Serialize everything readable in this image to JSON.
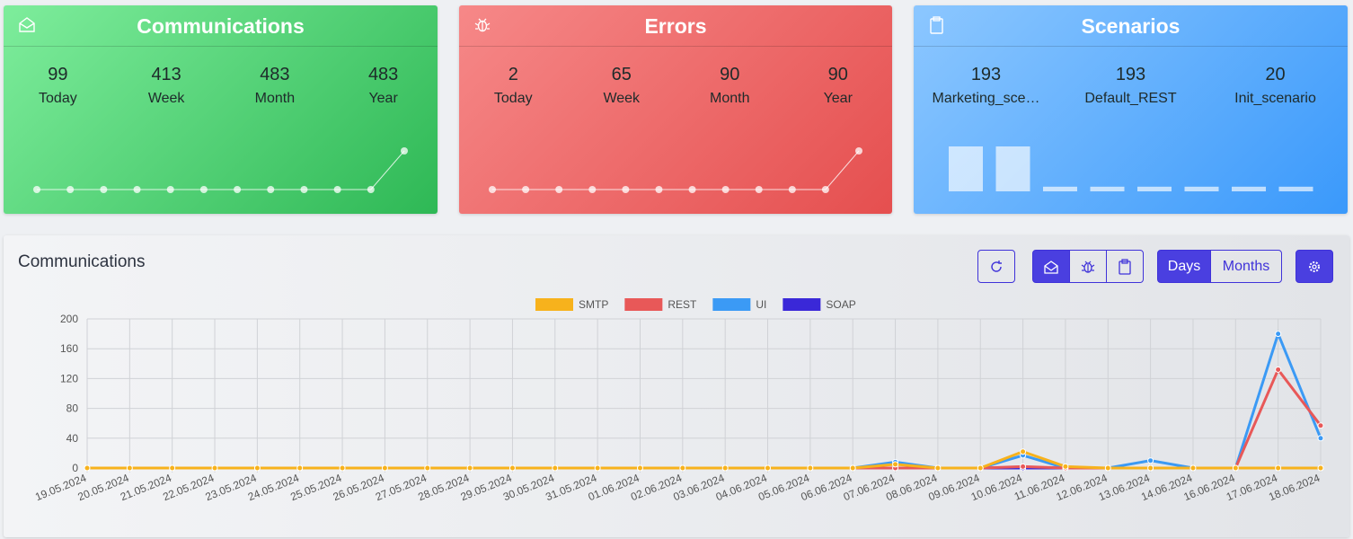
{
  "cards": [
    {
      "title": "Communications",
      "stats": [
        {
          "value": 99,
          "label": "Today"
        },
        {
          "value": 413,
          "label": "Week"
        },
        {
          "value": 483,
          "label": "Month"
        },
        {
          "value": 483,
          "label": "Year"
        }
      ],
      "spark": [
        0,
        0,
        0,
        0,
        0,
        0,
        0,
        0,
        0,
        0,
        0,
        99
      ]
    },
    {
      "title": "Errors",
      "stats": [
        {
          "value": 2,
          "label": "Today"
        },
        {
          "value": 65,
          "label": "Week"
        },
        {
          "value": 90,
          "label": "Month"
        },
        {
          "value": 90,
          "label": "Year"
        }
      ],
      "spark": [
        0,
        0,
        0,
        0,
        0,
        0,
        0,
        0,
        0,
        0,
        0,
        2
      ]
    },
    {
      "title": "Scenarios",
      "stats": [
        {
          "value": 193,
          "label": "Marketing_sce…"
        },
        {
          "value": 193,
          "label": "Default_REST"
        },
        {
          "value": 20,
          "label": "Init_scenario"
        }
      ],
      "bars": [
        193,
        193,
        20,
        20,
        20,
        20,
        20,
        20
      ]
    }
  ],
  "panel": {
    "title": "Communications",
    "buttons": {
      "days": "Days",
      "months": "Months"
    }
  },
  "chart_data": {
    "type": "line",
    "categories": [
      "19.05.2024",
      "20.05.2024",
      "21.05.2024",
      "22.05.2024",
      "23.05.2024",
      "24.05.2024",
      "25.05.2024",
      "26.05.2024",
      "27.05.2024",
      "28.05.2024",
      "29.05.2024",
      "30.05.2024",
      "31.05.2024",
      "01.06.2024",
      "02.06.2024",
      "03.06.2024",
      "04.06.2024",
      "05.06.2024",
      "06.06.2024",
      "07.06.2024",
      "08.06.2024",
      "09.06.2024",
      "10.06.2024",
      "11.06.2024",
      "12.06.2024",
      "13.06.2024",
      "14.06.2024",
      "16.06.2024",
      "17.06.2024",
      "18.06.2024"
    ],
    "series": [
      {
        "name": "SMTP",
        "color": "#f7b21c",
        "values": [
          0,
          0,
          0,
          0,
          0,
          0,
          0,
          0,
          0,
          0,
          0,
          0,
          0,
          0,
          0,
          0,
          0,
          0,
          0,
          5,
          0,
          0,
          22,
          2,
          0,
          0,
          0,
          0,
          0,
          0
        ]
      },
      {
        "name": "REST",
        "color": "#e85858",
        "values": [
          0,
          0,
          0,
          0,
          0,
          0,
          0,
          0,
          0,
          0,
          0,
          0,
          0,
          0,
          0,
          0,
          0,
          0,
          0,
          0,
          0,
          0,
          2,
          0,
          0,
          0,
          0,
          0,
          132,
          57
        ]
      },
      {
        "name": "UI",
        "color": "#3b9af5",
        "values": [
          0,
          0,
          0,
          0,
          0,
          0,
          0,
          0,
          0,
          0,
          0,
          0,
          0,
          0,
          0,
          0,
          0,
          0,
          0,
          8,
          0,
          0,
          17,
          0,
          0,
          10,
          0,
          0,
          180,
          40
        ]
      },
      {
        "name": "SOAP",
        "color": "#3a28d8",
        "values": [
          0,
          0,
          0,
          0,
          0,
          0,
          0,
          0,
          0,
          0,
          0,
          0,
          0,
          0,
          0,
          0,
          0,
          0,
          0,
          0,
          0,
          0,
          0,
          0,
          0,
          0,
          0,
          0,
          0,
          0
        ]
      }
    ],
    "ylim": [
      0,
      200
    ],
    "yticks": [
      0,
      40,
      80,
      120,
      160,
      200
    ],
    "grid": true,
    "legend": "top"
  }
}
